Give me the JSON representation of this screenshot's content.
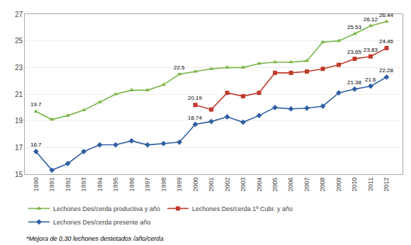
{
  "chart_data": {
    "type": "line",
    "x": [
      1990,
      1991,
      1992,
      1993,
      1994,
      1995,
      1996,
      1997,
      1998,
      1999,
      2000,
      2001,
      2002,
      2003,
      2004,
      2005,
      2006,
      2007,
      2008,
      2009,
      2010,
      2011,
      2012
    ],
    "series": [
      {
        "name": "Lechones Des/cerda productiva y año",
        "color": "#7ab648",
        "marker": "triangle",
        "values": [
          19.7,
          19.1,
          19.4,
          19.8,
          20.4,
          21.0,
          21.3,
          21.3,
          21.7,
          22.5,
          22.7,
          22.9,
          23.0,
          23.0,
          23.3,
          23.4,
          23.4,
          23.5,
          24.9,
          25.0,
          25.53,
          26.12,
          26.44
        ]
      },
      {
        "name": "Lechones Des/cerda 1ª Cubr. y año",
        "color": "#c0392b",
        "marker": "square",
        "values": [
          null,
          null,
          null,
          null,
          null,
          null,
          null,
          null,
          null,
          null,
          20.19,
          19.85,
          21.1,
          20.85,
          21.1,
          22.6,
          22.6,
          22.7,
          22.9,
          23.2,
          23.65,
          23.83,
          24.46
        ]
      },
      {
        "name": "Lechones Des/cerda presente año",
        "color": "#2e5fa3",
        "marker": "diamond",
        "values": [
          16.7,
          15.3,
          15.8,
          16.7,
          17.2,
          17.2,
          17.5,
          17.2,
          17.3,
          17.4,
          18.74,
          18.95,
          19.3,
          18.9,
          19.4,
          20.0,
          19.9,
          19.95,
          20.1,
          21.1,
          21.38,
          21.6,
          22.28
        ]
      }
    ],
    "annotations": [
      {
        "x": 1990,
        "y": 19.7,
        "text": "19.7"
      },
      {
        "x": 1999,
        "y": 22.5,
        "text": "22.5"
      },
      {
        "x": 2010,
        "y": 25.53,
        "text": "25.53"
      },
      {
        "x": 2011,
        "y": 26.12,
        "text": "26.12"
      },
      {
        "x": 2012,
        "y": 26.44,
        "text": "26.44"
      },
      {
        "x": 2000,
        "y": 20.19,
        "text": "20.19"
      },
      {
        "x": 2010,
        "y": 23.65,
        "text": "23.65"
      },
      {
        "x": 2011,
        "y": 23.83,
        "text": "23.83"
      },
      {
        "x": 2012,
        "y": 24.46,
        "text": "24.46"
      },
      {
        "x": 1990,
        "y": 16.7,
        "text": "16.7"
      },
      {
        "x": 2000,
        "y": 18.74,
        "text": "18.74"
      },
      {
        "x": 2010,
        "y": 21.38,
        "text": "21.38"
      },
      {
        "x": 2011,
        "y": 21.6,
        "text": "21.6"
      },
      {
        "x": 2012,
        "y": 22.28,
        "text": "22.28"
      }
    ],
    "footnote": "*Mejora de 0,30 lechones destetados /año/cerda",
    "xlim": [
      1989.3,
      2013.0
    ],
    "xticks": [
      1990,
      1991,
      1992,
      1993,
      1994,
      1995,
      1996,
      1997,
      1998,
      1999,
      2000,
      2001,
      2002,
      2003,
      2004,
      2005,
      2006,
      2007,
      2008,
      2009,
      2010,
      2011,
      2012
    ],
    "ylim": [
      15,
      27
    ],
    "yticks": [
      15,
      17,
      19,
      21,
      23,
      25,
      27
    ],
    "grid": "y",
    "legend": "bottom"
  }
}
